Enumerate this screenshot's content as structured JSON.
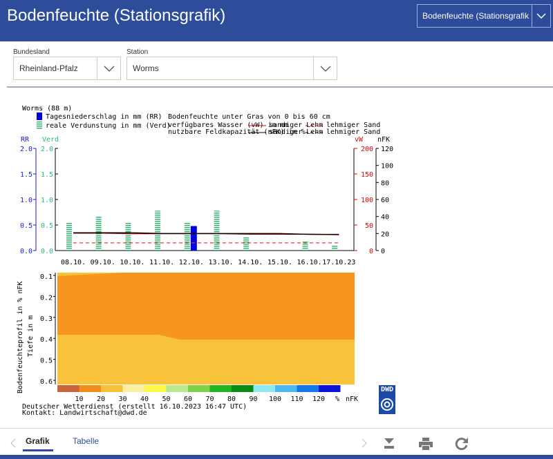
{
  "header": {
    "title": "Bodenfeuchte (Stationsgrafik)",
    "menu": "Bodenfeuchte (Stationsgrafik"
  },
  "filters": [
    {
      "label": "Bundesland",
      "value": "Rheinland-Pfalz"
    },
    {
      "label": "Station",
      "value": "Worms"
    }
  ],
  "graphic": {
    "station": "Worms (88 m)",
    "legend_rr": "Tagesniederschlag in mm (RR)",
    "legend_verd": "reale Verdunstung in mm (Verd)",
    "soil_title": "Bodenfeuchte unter Gras von 0 bis 60 cm",
    "legend_vw": "verfügbares Wasser (vW) in mm",
    "legend_nfk": "nutzbare Feldkapazität (nFK) in %",
    "soils": [
      "sandiger Lehm",
      "lehmiger Sand"
    ],
    "axis_rr": "RR",
    "axis_verd": "Verd",
    "axis_vw": "vW",
    "axis_nfk": "nFK",
    "ylim": [
      0,
      2
    ],
    "yticks": [
      {
        "value": 0,
        "label": "0.0"
      },
      {
        "value": 0.5,
        "label": "0.5"
      },
      {
        "value": 1,
        "label": "1.0"
      },
      {
        "value": 1.5,
        "label": "1.5"
      },
      {
        "value": 2,
        "label": "2.0"
      }
    ],
    "vw_lim": [
      0,
      200
    ],
    "vw_ticks": [
      0,
      50,
      100,
      150,
      200
    ],
    "nfk_lim": [
      0,
      120
    ],
    "nfk_ticks": [
      0,
      20,
      40,
      60,
      80,
      100,
      120
    ],
    "dates": [
      "08.10.",
      "09.10.",
      "10.10.",
      "11.10.",
      "12.10.",
      "13.10.",
      "14.10.",
      "15.10.",
      "16.10.",
      "17.10.23"
    ],
    "rr": [
      0,
      0,
      0,
      0,
      0.48,
      0,
      0,
      0,
      0,
      0
    ],
    "verd": [
      0.55,
      0.68,
      0.55,
      0.78,
      0.55,
      0.78,
      0.27,
      0,
      0.18,
      0.1
    ],
    "vw": {
      "sandiger_lehm": [
        34,
        34,
        33,
        33,
        33,
        33,
        32,
        32,
        32,
        31
      ],
      "lehmiger_sand": [
        15,
        15,
        15,
        15,
        15,
        15,
        15,
        15,
        15,
        15
      ]
    },
    "nfk": {
      "sandiger_lehm": [
        21,
        21,
        21,
        20,
        20,
        20,
        20,
        20,
        19,
        19
      ]
    },
    "depth_label": "Bodenfeuchteprofil in % nFK",
    "depth_sub": "Tiefe in m",
    "depth_lim": [
      0.1,
      0.6
    ],
    "depth_ticks": [
      0.1,
      0.2,
      0.3,
      0.4,
      0.5,
      0.6
    ],
    "scale": [
      10,
      20,
      30,
      40,
      50,
      60,
      70,
      80,
      90,
      100,
      110,
      120
    ],
    "scale_unit": "%",
    "scale_label": "nFK",
    "scale_colors": [
      "#c8643c",
      "#f28c1e",
      "#f7c03a",
      "#fbf0a0",
      "#fff84a",
      "#b8e890",
      "#7ed24a",
      "#22b422",
      "#0a8c14",
      "#8fe8f0",
      "#4cb8f0",
      "#1478e6",
      "#0a14d2"
    ],
    "credit": "Deutscher Wetterdienst (erstellt 16.10.2023 16:47 UTC)",
    "contact": "Kontakt: Landwirtschaft@dwd.de",
    "logo": "DWD"
  },
  "tabs": [
    "Grafik",
    "Tabelle"
  ]
}
